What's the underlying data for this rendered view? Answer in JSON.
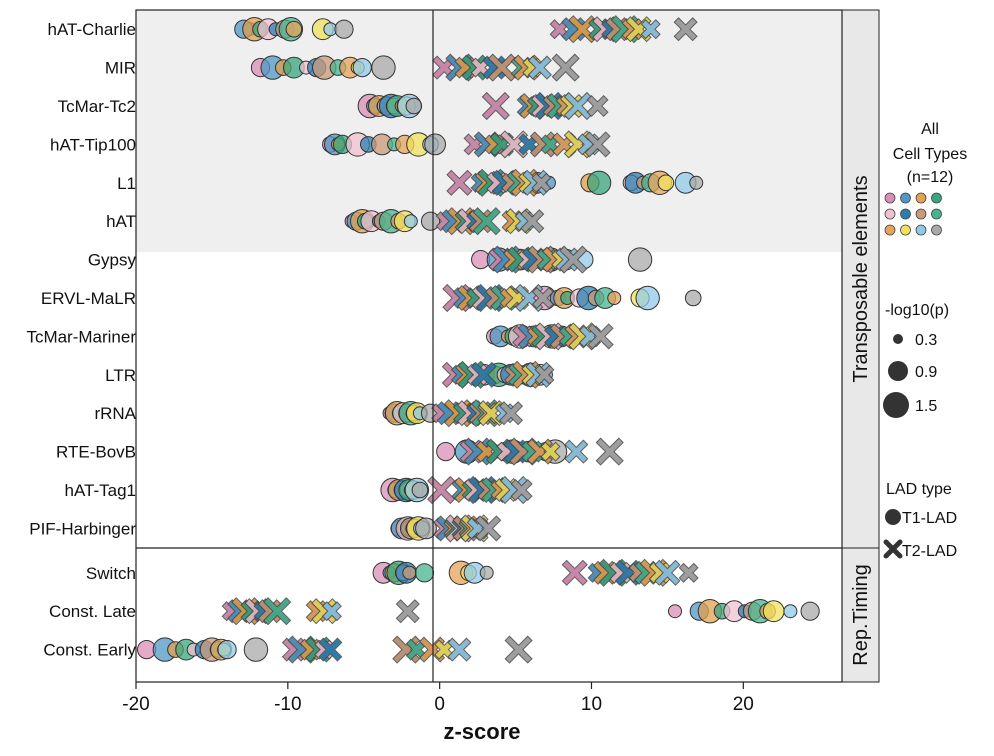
{
  "chart_data": {
    "type": "scatter",
    "xlabel": "z-score",
    "xlim": [
      -20,
      26.5
    ],
    "xticks": [
      -20,
      -10,
      0,
      10,
      20
    ],
    "x_tick_labels": [
      "-20",
      "-10",
      "0",
      "10",
      "20"
    ],
    "facets": [
      {
        "label": "Transposable elements",
        "rows": [
          "hAT-Charlie",
          "MIR",
          "TcMar-Tc2",
          "hAT-Tip100",
          "L1",
          "hAT",
          "Gypsy",
          "ERVL-MaLR",
          "TcMar-Mariner",
          "LTR",
          "rRNA",
          "RTE-BovB",
          "hAT-Tag1",
          "PIF-Harbinger"
        ]
      },
      {
        "label": "Rep.Timing",
        "rows": [
          "Switch",
          "Const. Late",
          "Const. Early"
        ]
      }
    ],
    "shaded_rows": [
      "hAT-Charlie",
      "MIR",
      "TcMar-Tc2",
      "hAT-Tip100",
      "L1",
      "hAT"
    ],
    "cell_type_colors": [
      "#d98fb4",
      "#4f97c4",
      "#e2a24e",
      "#3aa57e",
      "#f0c2d0",
      "#2b7fb0",
      "#c99a78",
      "#45b48f",
      "#e8a35a",
      "#f2e15c",
      "#90c9e8",
      "#a9a9a9"
    ],
    "series": [
      {
        "name": "T1-LAD",
        "marker": "circle",
        "points": [
          {
            "row": "hAT-Charlie",
            "x": [
              -12.5,
              -12.9,
              -12.2,
              -11.8,
              -11.3,
              -10.8,
              -10.2,
              -9.8,
              -9.6,
              -7.7,
              -7.2,
              -6.3
            ]
          },
          {
            "row": "MIR",
            "x": [
              -11.8,
              -11.0,
              -10.3,
              -9.6,
              -8.8,
              -8.1,
              -7.6,
              -6.7,
              -5.9,
              -5.4,
              -5.1,
              -3.7
            ]
          },
          {
            "row": "TcMar-Tc2",
            "x": [
              -4.6,
              -4.3,
              -4.0,
              -3.7,
              -3.5,
              -3.2,
              -3.0,
              -2.8,
              -2.5,
              -2.2,
              -2.0,
              -1.7
            ]
          },
          {
            "row": "hAT-Tip100",
            "x": [
              -7.2,
              -6.9,
              -6.7,
              -6.4,
              -5.4,
              -4.7,
              -3.8,
              -3.0,
              -2.3,
              -1.4,
              -0.6,
              -0.3
            ]
          },
          {
            "row": "L1",
            "x": [
              6.4,
              7.2,
              9.9,
              10.5,
              12.6,
              12.9,
              13.4,
              13.9,
              14.5,
              14.9,
              16.2,
              16.9
            ]
          },
          {
            "row": "hAT",
            "x": [
              -5.8,
              -5.5,
              -5.1,
              -4.9,
              -4.5,
              -4.0,
              -3.7,
              -3.2,
              -2.7,
              -2.3,
              -1.9,
              -0.6
            ]
          },
          {
            "row": "Gypsy",
            "x": [
              2.7,
              3.9,
              4.7,
              5.3,
              6.2,
              6.7,
              7.3,
              7.9,
              8.3,
              8.7,
              9.5,
              13.2
            ]
          },
          {
            "row": "ERVL-MaLR",
            "x": [
              6.9,
              7.8,
              8.2,
              8.4,
              9.2,
              9.8,
              10.3,
              10.9,
              11.5,
              13.2,
              13.7,
              16.7
            ]
          },
          {
            "row": "TcMar-Mariner",
            "x": [
              3.6,
              4.0,
              4.5,
              4.9,
              5.3,
              5.8,
              6.2,
              6.6,
              6.9,
              7.4,
              7.7,
              8.0
            ]
          },
          {
            "row": "LTR",
            "x": [
              2.9,
              3.2,
              3.6,
              3.9,
              4.3,
              4.7,
              5.1,
              5.5,
              6.0,
              6.3,
              6.6,
              7.0
            ]
          },
          {
            "row": "rRNA",
            "x": [
              -3.3,
              -3.0,
              -2.8,
              -2.6,
              -2.4,
              -2.2,
              -2.1,
              -1.9,
              -1.7,
              -1.5,
              -1.3,
              -0.6
            ]
          },
          {
            "row": "RTE-BovB",
            "x": [
              0.4,
              1.8,
              2.6,
              3.2,
              3.7,
              4.3,
              4.8,
              5.4,
              5.9,
              6.4,
              7.0,
              7.6
            ]
          },
          {
            "row": "hAT-Tag1",
            "x": [
              -3.1,
              -2.9,
              -2.7,
              -2.5,
              -2.4,
              -2.2,
              -2.1,
              -2.0,
              -1.9,
              -1.7,
              -1.5,
              -1.3
            ]
          },
          {
            "row": "PIF-Harbinger",
            "x": [
              -2.7,
              -2.5,
              -2.3,
              -2.2,
              -2.1,
              -2.0,
              -1.9,
              -1.8,
              -1.6,
              -1.4,
              -1.2,
              -0.9
            ]
          },
          {
            "row": "Switch",
            "x": [
              -3.7,
              -3.3,
              -3.0,
              -2.7,
              -2.4,
              -2.2,
              -2.0,
              -1.0,
              1.4,
              1.9,
              2.3,
              3.1
            ]
          },
          {
            "row": "Const. Late",
            "x": [
              15.5,
              17.1,
              17.8,
              18.6,
              19.4,
              20.1,
              20.6,
              21.1,
              21.6,
              22.0,
              23.1,
              24.4
            ]
          },
          {
            "row": "Const. Early",
            "x": [
              -19.3,
              -18.1,
              -17.4,
              -16.7,
              -16.2,
              -15.5,
              -15.0,
              -14.6,
              -14.4,
              -14.2,
              -14.0,
              -12.1
            ]
          }
        ]
      },
      {
        "name": "T2-LAD",
        "marker": "cross",
        "points": [
          {
            "row": "hAT-Charlie",
            "x": [
              7.9,
              8.8,
              9.4,
              10.5,
              10.9,
              11.3,
              11.7,
              12.2,
              12.7,
              13.1,
              13.9,
              16.2
            ]
          },
          {
            "row": "MIR",
            "x": [
              0.3,
              1.3,
              1.7,
              2.3,
              2.7,
              3.6,
              4.1,
              5.4,
              5.7,
              6.1,
              6.6,
              8.3
            ]
          },
          {
            "row": "TcMar-Tc2",
            "x": [
              3.7,
              5.8,
              6.1,
              6.4,
              6.8,
              7.2,
              7.5,
              7.9,
              8.3,
              8.7,
              9.1,
              10.4
            ]
          },
          {
            "row": "hAT-Tip100",
            "x": [
              2.3,
              3.1,
              3.6,
              4.1,
              4.9,
              5.9,
              6.8,
              7.3,
              8.2,
              9.1,
              9.8,
              10.4
            ]
          },
          {
            "row": "L1",
            "x": [
              1.3,
              2.7,
              3.1,
              3.4,
              3.8,
              4.3,
              4.7,
              5.2,
              5.6,
              5.9,
              6.3,
              6.7
            ]
          },
          {
            "row": "hAT",
            "x": [
              0.4,
              0.9,
              1.4,
              1.7,
              2.0,
              2.4,
              2.7,
              3.1,
              4.8,
              5.2,
              5.6,
              6.1
            ]
          },
          {
            "row": "Gypsy",
            "x": [
              4.0,
              4.4,
              4.9,
              5.3,
              5.8,
              6.2,
              6.7,
              7.1,
              7.6,
              8.0,
              8.4,
              8.8
            ]
          },
          {
            "row": "ERVL-MaLR",
            "x": [
              1.1,
              1.6,
              2.0,
              2.4,
              2.9,
              3.3,
              3.7,
              4.2,
              4.6,
              5.1,
              5.9,
              6.8
            ]
          },
          {
            "row": "TcMar-Mariner",
            "x": [
              5.5,
              6.0,
              6.4,
              6.8,
              7.2,
              7.6,
              8.1,
              8.5,
              9.0,
              9.4,
              9.9,
              10.6
            ]
          },
          {
            "row": "LTR",
            "x": [
              1.0,
              1.4,
              1.8,
              2.1,
              2.5,
              2.9,
              4.9,
              5.3,
              5.7,
              6.1,
              6.5,
              6.9
            ]
          },
          {
            "row": "rRNA",
            "x": [
              0.1,
              0.6,
              1.2,
              1.6,
              2.0,
              2.4,
              2.7,
              3.0,
              3.2,
              3.4,
              4.3,
              4.7
            ]
          },
          {
            "row": "RTE-BovB",
            "x": [
              2.1,
              2.5,
              3.1,
              3.9,
              4.4,
              5.0,
              5.5,
              6.1,
              6.6,
              7.3,
              9.0,
              11.2
            ]
          },
          {
            "row": "hAT-Tag1",
            "x": [
              0.1,
              1.5,
              1.8,
              2.1,
              2.4,
              2.8,
              3.2,
              3.6,
              4.0,
              4.4,
              4.9,
              5.4
            ]
          },
          {
            "row": "PIF-Harbinger",
            "x": [
              0.3,
              0.6,
              0.9,
              1.1,
              1.3,
              1.5,
              1.7,
              1.9,
              2.1,
              2.3,
              2.5,
              3.2
            ]
          },
          {
            "row": "Switch",
            "x": [
              8.9,
              10.4,
              10.9,
              11.4,
              11.9,
              12.4,
              13.1,
              13.6,
              14.1,
              14.5,
              15.0,
              16.4
            ]
          },
          {
            "row": "Const. Late",
            "x": [
              -13.7,
              -13.2,
              -12.8,
              -12.4,
              -12.0,
              -11.6,
              -11.2,
              -10.7,
              -8.1,
              -7.6,
              -7.1,
              -2.1
            ]
          },
          {
            "row": "Const. Early",
            "x": [
              -9.6,
              -9.1,
              -8.5,
              -8.0,
              -7.6,
              -7.2,
              -2.2,
              -1.5,
              -0.5,
              0.3,
              1.3,
              5.2
            ]
          }
        ]
      }
    ],
    "legend": {
      "cell_types_title": [
        "All",
        "Cell Types",
        "(n=12)"
      ],
      "size_title": "-log10(p)",
      "size_values": [
        "0.3",
        "0.9",
        "1.5"
      ],
      "shape_title": "LAD type",
      "shape_entries": [
        "T1-LAD",
        "T2-LAD"
      ]
    }
  }
}
